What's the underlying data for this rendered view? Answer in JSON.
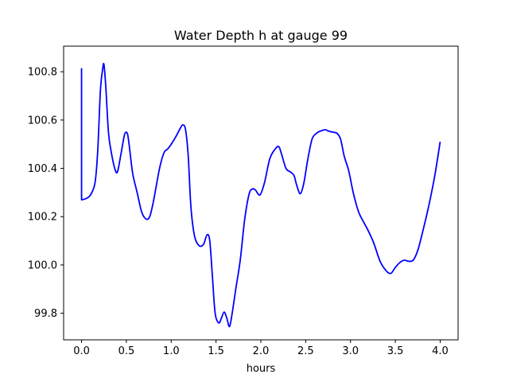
{
  "chart_data": {
    "type": "line",
    "title": "Water Depth h at gauge 99",
    "xlabel": "hours",
    "ylabel": "",
    "xlim": [
      -0.2,
      4.2
    ],
    "ylim": [
      99.69,
      100.906
    ],
    "xticks": [
      0.0,
      0.5,
      1.0,
      1.5,
      2.0,
      2.5,
      3.0,
      3.5,
      4.0
    ],
    "xtick_labels": [
      "0.0",
      "0.5",
      "1.0",
      "1.5",
      "2.0",
      "2.5",
      "3.0",
      "3.5",
      "4.0"
    ],
    "yticks": [
      99.8,
      100.0,
      100.2,
      100.4,
      100.6,
      100.8
    ],
    "ytick_labels": [
      "99.8",
      "100.0",
      "100.2",
      "100.4",
      "100.6",
      "100.8"
    ],
    "grid": false,
    "legend": false,
    "color": "#0000ff",
    "series": [
      {
        "x": [
          0.0,
          0.0,
          0.005,
          0.05,
          0.1,
          0.15,
          0.18,
          0.21,
          0.235,
          0.25,
          0.27,
          0.3,
          0.33,
          0.37,
          0.4,
          0.44,
          0.48,
          0.51,
          0.53,
          0.57,
          0.62,
          0.67,
          0.72,
          0.76,
          0.8,
          0.87,
          0.92,
          0.96,
          1.0,
          1.05,
          1.1,
          1.13,
          1.16,
          1.19,
          1.22,
          1.26,
          1.31,
          1.36,
          1.4,
          1.43,
          1.46,
          1.49,
          1.53,
          1.56,
          1.59,
          1.62,
          1.65,
          1.68,
          1.72,
          1.77,
          1.82,
          1.87,
          1.91,
          1.94,
          1.99,
          2.04,
          2.1,
          2.16,
          2.2,
          2.23,
          2.28,
          2.33,
          2.37,
          2.4,
          2.44,
          2.48,
          2.52,
          2.57,
          2.62,
          2.67,
          2.72,
          2.75,
          2.8,
          2.85,
          2.89,
          2.93,
          2.98,
          3.03,
          3.09,
          3.15,
          3.2,
          3.26,
          3.33,
          3.4,
          3.45,
          3.5,
          3.55,
          3.6,
          3.65,
          3.7,
          3.75,
          3.8,
          3.87,
          3.94,
          4.0
        ],
        "y": [
          100.815,
          100.27,
          100.27,
          100.275,
          100.29,
          100.34,
          100.47,
          100.72,
          100.81,
          100.83,
          100.74,
          100.55,
          100.47,
          100.4,
          100.385,
          100.46,
          100.54,
          100.545,
          100.5,
          100.38,
          100.3,
          100.22,
          100.19,
          100.2,
          100.26,
          100.4,
          100.465,
          100.48,
          100.5,
          100.53,
          100.565,
          100.58,
          100.56,
          100.45,
          100.24,
          100.12,
          100.08,
          100.085,
          100.125,
          100.1,
          99.95,
          99.8,
          99.76,
          99.78,
          99.805,
          99.78,
          99.745,
          99.8,
          99.9,
          100.02,
          100.19,
          100.295,
          100.315,
          100.31,
          100.29,
          100.34,
          100.44,
          100.48,
          100.49,
          100.46,
          100.4,
          100.385,
          100.37,
          100.33,
          100.295,
          100.34,
          100.43,
          100.52,
          100.545,
          100.555,
          100.56,
          100.555,
          100.55,
          100.545,
          100.52,
          100.45,
          100.39,
          100.3,
          100.22,
          100.175,
          100.14,
          100.09,
          100.015,
          99.975,
          99.965,
          99.99,
          100.01,
          100.02,
          100.015,
          100.02,
          100.06,
          100.13,
          100.24,
          100.37,
          100.51
        ]
      }
    ]
  }
}
